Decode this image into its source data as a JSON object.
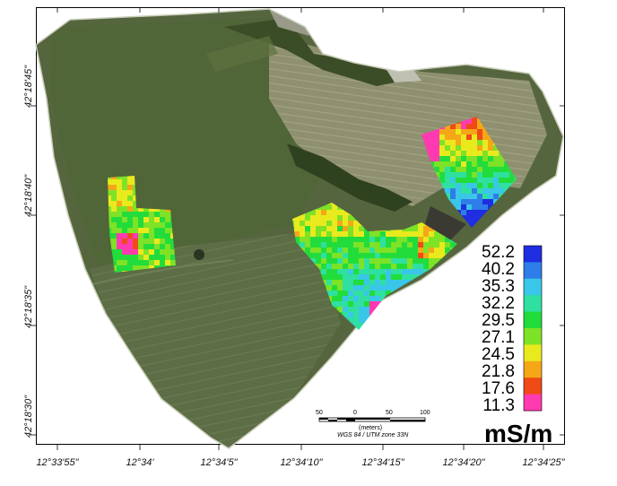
{
  "map": {
    "lat_labels": [
      "42°18'45\"",
      "42°18'40\"",
      "42°18'35\"",
      "42°18'30\""
    ],
    "lon_labels": [
      "12°33'55\"",
      "12°34'",
      "12°34'5\"",
      "12°34'10\"",
      "12°34'15\"",
      "12°34'20\"",
      "12°34'25\""
    ]
  },
  "legend": {
    "values": [
      "52.2",
      "40.2",
      "35.3",
      "32.2",
      "29.5",
      "27.1",
      "24.5",
      "21.8",
      "17.6",
      "11.3"
    ],
    "colors": [
      "#1e2ee0",
      "#2f7de8",
      "#3ac6e8",
      "#2fe0a0",
      "#22dc3c",
      "#7ee226",
      "#e9ea1e",
      "#f5a718",
      "#f04a16",
      "#ff3ab0"
    ],
    "units": "mS/m"
  },
  "scale_bar": {
    "ticks": [
      "50",
      "0",
      "50",
      "100"
    ],
    "unit_label": "(meters)",
    "projection": "WGS 84 / UTM zone 33N"
  }
}
